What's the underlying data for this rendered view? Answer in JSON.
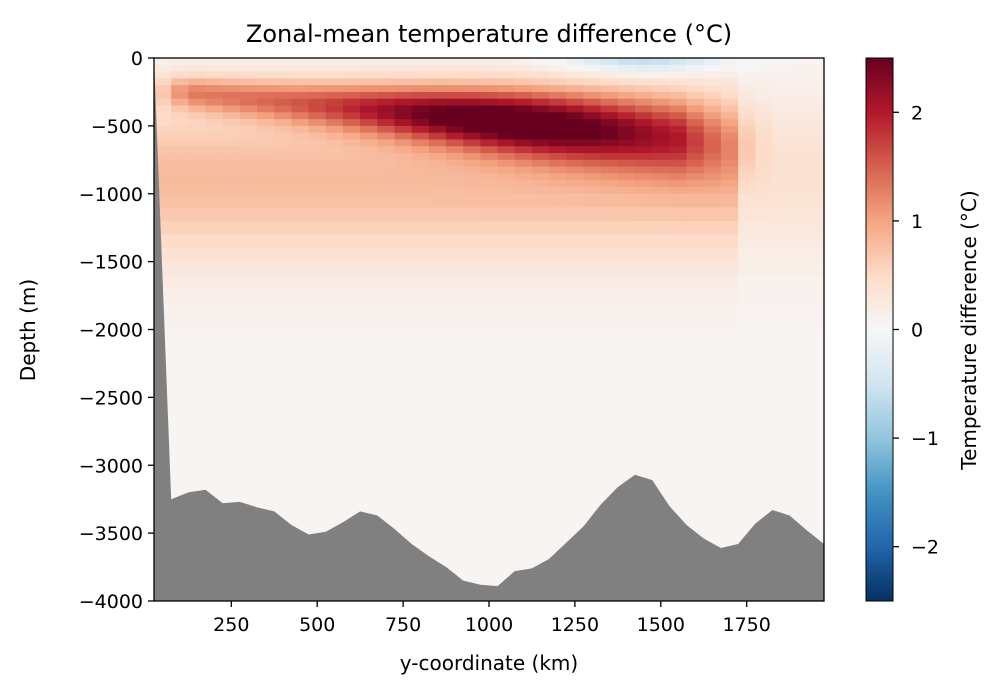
{
  "chart_data": {
    "type": "heatmap",
    "title": "Zonal-mean temperature difference (°C)",
    "xlabel": "y-coordinate (km)",
    "ylabel": "Depth (m)",
    "xlim": [
      25,
      1975
    ],
    "ylim": [
      -4000,
      0
    ],
    "xticks": [
      250,
      500,
      750,
      1000,
      1250,
      1500,
      1750
    ],
    "xtick_labels": [
      "250",
      "500",
      "750",
      "1000",
      "1250",
      "1500",
      "1750"
    ],
    "yticks": [
      0,
      -500,
      -1000,
      -1500,
      -2000,
      -2500,
      -3000,
      -3500,
      -4000
    ],
    "ytick_labels": [
      "0",
      "−500",
      "−1000",
      "−1500",
      "−2000",
      "−2500",
      "−3000",
      "−3500",
      "−4000"
    ],
    "colormap": "RdBu_r",
    "clim": [
      -2.5,
      2.5
    ],
    "colorbar": {
      "label": "Temperature difference (°C)",
      "ticks": [
        2,
        1,
        0,
        -1,
        -2
      ],
      "tick_labels": [
        "2",
        "1",
        "0",
        "−1",
        "−2"
      ]
    },
    "grid_cell_km": 50,
    "depth_levels_m": [
      0,
      -50,
      -100,
      -150,
      -200,
      -250,
      -300,
      -350,
      -400,
      -450,
      -500,
      -550,
      -600,
      -650,
      -700,
      -750,
      -800,
      -850,
      -900,
      -950,
      -1000,
      -1100,
      -1200,
      -1300,
      -1400,
      -1500,
      -1600,
      -1700,
      -1800,
      -1900,
      -2000,
      -2100,
      -2200,
      -2300,
      -2400,
      -2500,
      -2600,
      -2700,
      -2800,
      -2900,
      -3000,
      -3100,
      -3200,
      -3300,
      -3400,
      -3500,
      -3600,
      -3700,
      -3800,
      -3900,
      -4000
    ],
    "field_features": {
      "warm_core": {
        "max_value": 2.4,
        "y_range_km": [
          650,
          1300
        ],
        "depth_range_m": [
          -600,
          -250
        ]
      },
      "surface_cooling": {
        "min_value": -0.8,
        "y_range_km": [
          1300,
          1700
        ],
        "depth_range_m": [
          -150,
          0
        ]
      },
      "background": 0.05
    },
    "bathymetry": {
      "fill_color": "#808080",
      "y_km": [
        25,
        75,
        125,
        175,
        225,
        275,
        325,
        375,
        425,
        475,
        525,
        575,
        625,
        675,
        725,
        775,
        825,
        875,
        925,
        975,
        1025,
        1075,
        1125,
        1175,
        1225,
        1275,
        1325,
        1375,
        1425,
        1475,
        1525,
        1575,
        1625,
        1675,
        1725,
        1775,
        1825,
        1875,
        1925,
        1975
      ],
      "depth_m": [
        0,
        -3250,
        -3200,
        -3180,
        -3280,
        -3270,
        -3310,
        -3340,
        -3440,
        -3510,
        -3490,
        -3420,
        -3340,
        -3370,
        -3470,
        -3580,
        -3670,
        -3750,
        -3850,
        -3880,
        -3890,
        -3780,
        -3760,
        -3690,
        -3570,
        -3450,
        -3290,
        -3160,
        -3070,
        -3110,
        -3300,
        -3440,
        -3540,
        -3610,
        -3580,
        -3430,
        -3330,
        -3370,
        -3480,
        -3580
      ]
    }
  }
}
